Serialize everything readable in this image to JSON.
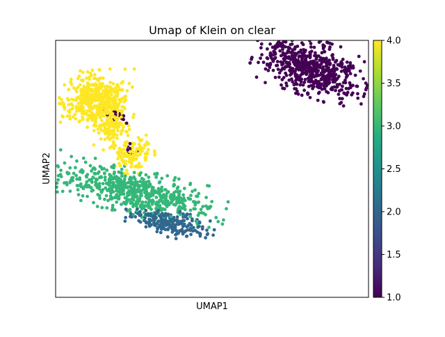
{
  "chart_data": {
    "type": "scatter",
    "title": "Umap of Klein on clear",
    "xlabel": "UMAP1",
    "ylabel": "UMAP2",
    "x_ticks_shown": false,
    "y_ticks_shown": false,
    "xlim": [
      -7.5,
      11.5
    ],
    "ylim": [
      -4.5,
      11.5
    ],
    "grid": false,
    "legend": "none",
    "colorbar": {
      "position": "right",
      "colormap": "viridis",
      "range": [
        1.0,
        4.0
      ],
      "ticks": [
        1.0,
        1.5,
        2.0,
        2.5,
        3.0,
        3.5,
        4.0
      ],
      "tick_labels": [
        "1.0",
        "1.5",
        "2.0",
        "2.5",
        "3.0",
        "3.5",
        "4.0"
      ]
    },
    "colors": {
      "1": "#440154",
      "2": "#31688e",
      "3": "#35b779",
      "4": "#fde725"
    },
    "clusters": [
      {
        "value": 1,
        "n": 620,
        "center": [
          8.0,
          9.8
        ],
        "spread": [
          1.5,
          0.75
        ],
        "rotation": -18
      },
      {
        "value": 4,
        "n": 480,
        "center": [
          -5.0,
          7.8
        ],
        "spread": [
          0.95,
          0.8
        ],
        "rotation": 0
      },
      {
        "value": 4,
        "n": 110,
        "center": [
          -4.1,
          6.0
        ],
        "spread": [
          0.45,
          0.55
        ],
        "rotation": 0
      },
      {
        "value": 4,
        "n": 120,
        "center": [
          -2.8,
          4.4
        ],
        "spread": [
          0.55,
          0.5
        ],
        "rotation": 0
      },
      {
        "value": 3,
        "n": 650,
        "center": [
          -2.8,
          2.1
        ],
        "spread": [
          2.4,
          0.6
        ],
        "rotation": -14
      },
      {
        "value": 2,
        "n": 230,
        "center": [
          -0.6,
          0.1
        ],
        "spread": [
          1.15,
          0.35
        ],
        "rotation": -12
      },
      {
        "value": 1,
        "n": 14,
        "center": [
          -3.8,
          6.9
        ],
        "spread": [
          0.35,
          0.25
        ],
        "rotation": 0
      },
      {
        "value": 1,
        "n": 8,
        "center": [
          -3.0,
          4.7
        ],
        "spread": [
          0.25,
          0.2
        ],
        "rotation": 0
      }
    ]
  }
}
